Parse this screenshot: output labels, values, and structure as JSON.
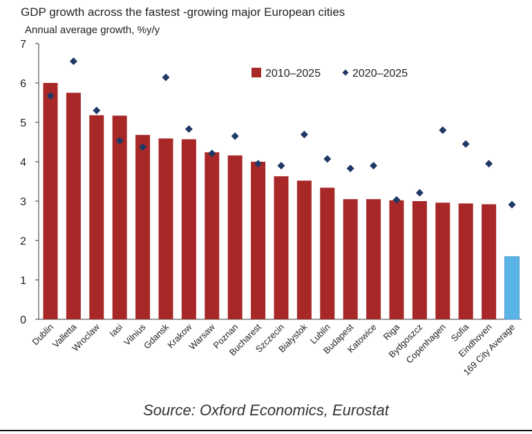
{
  "chart_data": {
    "type": "bar",
    "title": "GDP growth across the fastest -growing major European cities",
    "subtitle": "Annual average growth, %y/y",
    "ylim": [
      0,
      7
    ],
    "yticks": [
      0,
      1,
      2,
      3,
      4,
      5,
      6,
      7
    ],
    "grid": false,
    "legend_position": "top-right",
    "categories": [
      "Dublin",
      "Valletta",
      "Wroclaw",
      "Iasi",
      "Vilnius",
      "Gdansk",
      "Krakow",
      "Warsaw",
      "Poznan",
      "Bucharest",
      "Szczecin",
      "Bialystok",
      "Lublin",
      "Budapest",
      "Katowice",
      "Riga",
      "Bydgoszcz",
      "Copenhagen",
      "Sofia",
      "Eindhoven",
      "169 City Average"
    ],
    "series": [
      {
        "name": "2010–2025",
        "mark": "bar",
        "color": "#A82828",
        "highlight_color": "#5AB4E6",
        "highlight_index": 20,
        "values": [
          6.0,
          5.75,
          5.18,
          5.17,
          4.68,
          4.59,
          4.57,
          4.24,
          4.16,
          4.0,
          3.63,
          3.52,
          3.34,
          3.05,
          3.05,
          3.02,
          3.0,
          2.96,
          2.94,
          2.92,
          1.59
        ]
      },
      {
        "name": "2020–2025",
        "mark": "diamond",
        "color": "#1F3864",
        "values": [
          5.67,
          6.55,
          5.3,
          4.53,
          4.37,
          6.14,
          4.83,
          4.21,
          4.65,
          3.95,
          3.9,
          4.69,
          4.07,
          3.83,
          3.9,
          3.03,
          3.21,
          4.8,
          4.45,
          3.95,
          2.91
        ]
      }
    ]
  },
  "source": "Source: Oxford Economics, Eurostat"
}
